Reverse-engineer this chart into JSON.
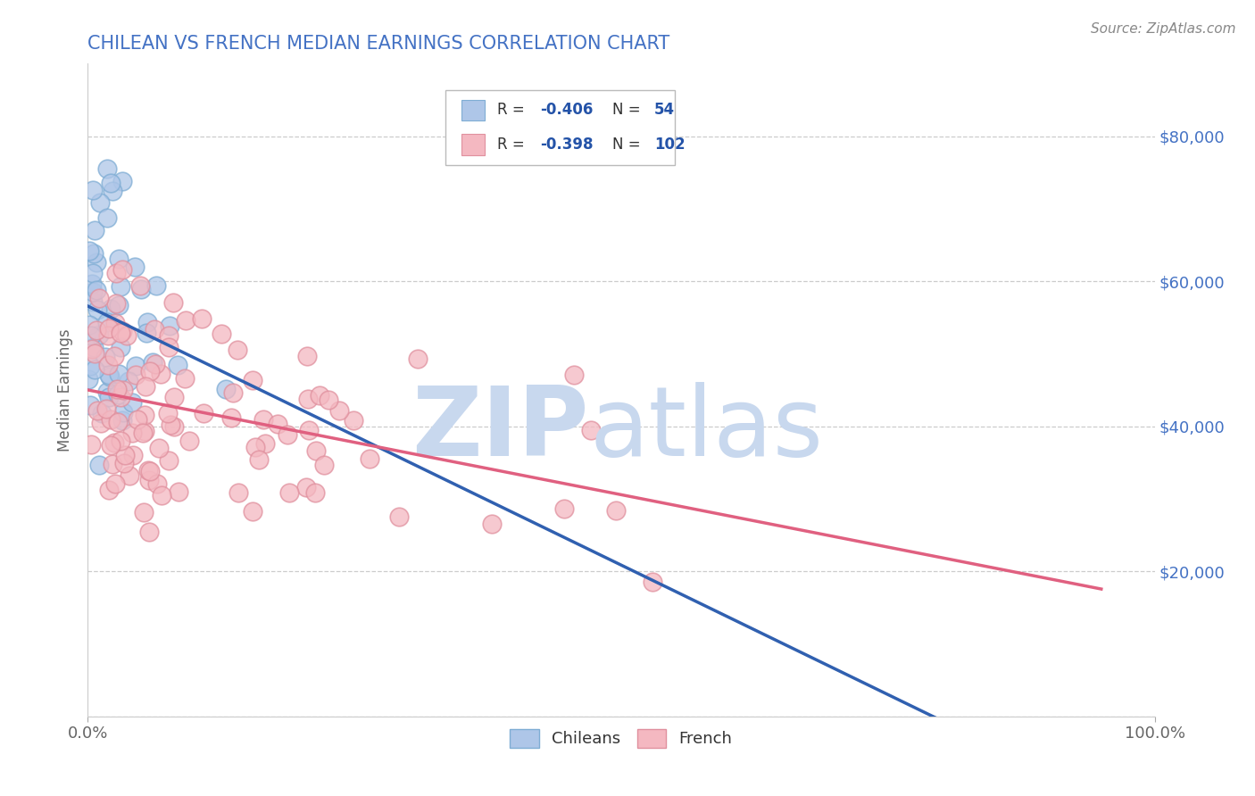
{
  "title": "CHILEAN VS FRENCH MEDIAN EARNINGS CORRELATION CHART",
  "source": "Source: ZipAtlas.com",
  "ylabel": "Median Earnings",
  "legend_blue_R": "R = -0.406",
  "legend_blue_N": "N =  54",
  "legend_pink_R": "R = -0.398",
  "legend_pink_N": "N = 102",
  "ytick_vals": [
    0,
    20000,
    40000,
    60000,
    80000
  ],
  "ytick_labels": [
    "",
    "$20,000",
    "$40,000",
    "$60,000",
    "$80,000"
  ],
  "background_color": "#ffffff",
  "grid_color": "#cccccc",
  "title_color": "#4472c4",
  "ytick_color": "#4472c4",
  "watermark_zip": "ZIP",
  "watermark_atlas": "atlas",
  "watermark_color": "#c8d8ee",
  "dot_blue_face": "#aec6e8",
  "dot_blue_edge": "#7fadd4",
  "dot_pink_face": "#f4b8c1",
  "dot_pink_edge": "#e0909e",
  "line_blue": "#3060b0",
  "line_pink": "#e06080",
  "line_dash": "#b8c8d8",
  "chil_seed": 101,
  "fren_seed": 202,
  "n_chil": 54,
  "n_fren": 102,
  "xlim": [
    0,
    100
  ],
  "ylim": [
    0,
    90000
  ]
}
